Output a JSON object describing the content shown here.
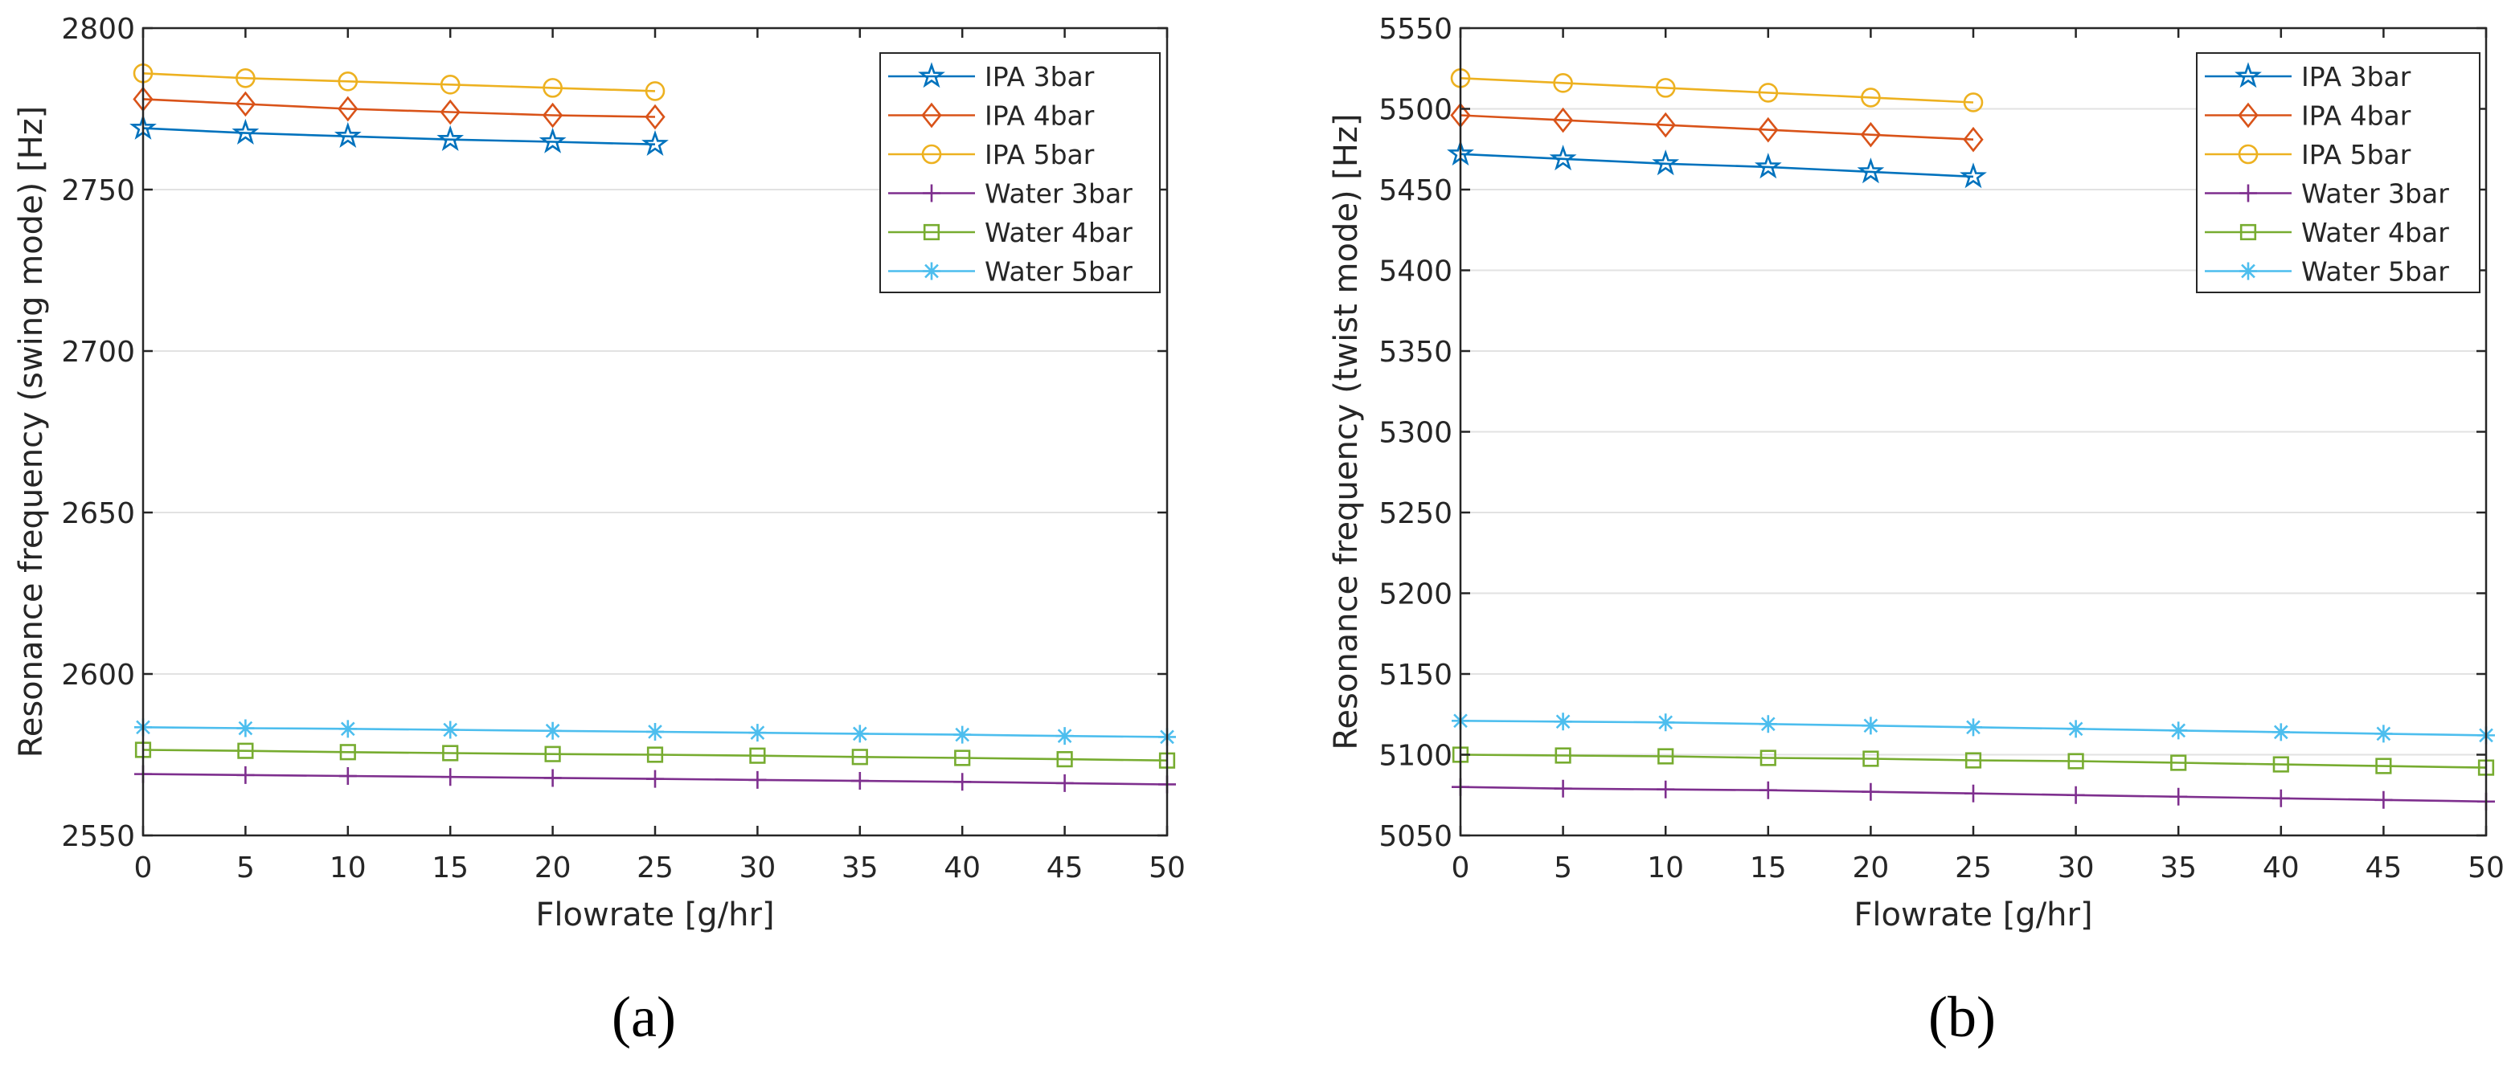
{
  "chart_data": [
    {
      "type": "line",
      "panel_label": "(a)",
      "title": "",
      "xlabel": "Flowrate [g/hr]",
      "ylabel": "Resonance frequency (swing mode) [Hz]",
      "xlim": [
        0,
        50
      ],
      "ylim": [
        2550,
        2800
      ],
      "xticks": [
        0,
        5,
        10,
        15,
        20,
        25,
        30,
        35,
        40,
        45,
        50
      ],
      "yticks": [
        2550,
        2600,
        2650,
        2700,
        2750,
        2800
      ],
      "grid": "horizontal",
      "legend_position": "top-right",
      "series": [
        {
          "name": "IPA 3bar",
          "color": "#0072BD",
          "marker": "star",
          "x": [
            0,
            5,
            10,
            15,
            20,
            25
          ],
          "values": [
            2769,
            2767.5,
            2766.5,
            2765.5,
            2764.8,
            2764
          ]
        },
        {
          "name": "IPA 4bar",
          "color": "#D95319",
          "marker": "diamond",
          "x": [
            0,
            5,
            10,
            15,
            20,
            25
          ],
          "values": [
            2778,
            2776.5,
            2775,
            2774,
            2773,
            2772.5
          ]
        },
        {
          "name": "IPA 5bar",
          "color": "#EDB120",
          "marker": "circle",
          "x": [
            0,
            5,
            10,
            15,
            20,
            25
          ],
          "values": [
            2786,
            2784.5,
            2783.5,
            2782.5,
            2781.5,
            2780.5
          ]
        },
        {
          "name": "Water 3bar",
          "color": "#7E2F8E",
          "marker": "plus",
          "x": [
            0,
            5,
            10,
            15,
            20,
            25,
            30,
            35,
            40,
            45,
            50
          ],
          "values": [
            2569,
            2568.7,
            2568.4,
            2568.1,
            2567.8,
            2567.5,
            2567.2,
            2566.9,
            2566.6,
            2566.2,
            2565.8
          ]
        },
        {
          "name": "Water 4bar",
          "color": "#77AC30",
          "marker": "square",
          "x": [
            0,
            5,
            10,
            15,
            20,
            25,
            30,
            35,
            40,
            45,
            50
          ],
          "values": [
            2576.5,
            2576.2,
            2575.8,
            2575.5,
            2575.2,
            2575,
            2574.7,
            2574.3,
            2574,
            2573.6,
            2573.2
          ]
        },
        {
          "name": "Water 5bar",
          "color": "#4DBEEE",
          "marker": "asterisk",
          "x": [
            0,
            5,
            10,
            15,
            20,
            25,
            30,
            35,
            40,
            45,
            50
          ],
          "values": [
            2583.5,
            2583.2,
            2583,
            2582.7,
            2582.4,
            2582.1,
            2581.8,
            2581.5,
            2581.2,
            2580.8,
            2580.5
          ]
        }
      ]
    },
    {
      "type": "line",
      "panel_label": "(b)",
      "title": "",
      "xlabel": "Flowrate [g/hr]",
      "ylabel": "Resonance frequency (twist mode) [Hz]",
      "xlim": [
        0,
        50
      ],
      "ylim": [
        5050,
        5550
      ],
      "xticks": [
        0,
        5,
        10,
        15,
        20,
        25,
        30,
        35,
        40,
        45,
        50
      ],
      "yticks": [
        5050,
        5100,
        5150,
        5200,
        5250,
        5300,
        5350,
        5400,
        5450,
        5500,
        5550
      ],
      "grid": "horizontal",
      "legend_position": "top-right",
      "series": [
        {
          "name": "IPA 3bar",
          "color": "#0072BD",
          "marker": "star",
          "x": [
            0,
            5,
            10,
            15,
            20,
            25
          ],
          "values": [
            5472,
            5469,
            5466,
            5464,
            5461,
            5458
          ]
        },
        {
          "name": "IPA 4bar",
          "color": "#D95319",
          "marker": "diamond",
          "x": [
            0,
            5,
            10,
            15,
            20,
            25
          ],
          "values": [
            5496,
            5493,
            5490,
            5487,
            5484,
            5481
          ]
        },
        {
          "name": "IPA 5bar",
          "color": "#EDB120",
          "marker": "circle",
          "x": [
            0,
            5,
            10,
            15,
            20,
            25
          ],
          "values": [
            5519,
            5516,
            5513,
            5510,
            5507,
            5504
          ]
        },
        {
          "name": "Water 3bar",
          "color": "#7E2F8E",
          "marker": "plus",
          "x": [
            0,
            5,
            10,
            15,
            20,
            25,
            30,
            35,
            40,
            45,
            50
          ],
          "values": [
            5080,
            5079,
            5078.5,
            5078,
            5077,
            5076,
            5075,
            5074,
            5073,
            5072,
            5071
          ]
        },
        {
          "name": "Water 4bar",
          "color": "#77AC30",
          "marker": "square",
          "x": [
            0,
            5,
            10,
            15,
            20,
            25,
            30,
            35,
            40,
            45,
            50
          ],
          "values": [
            5100,
            5099.5,
            5099,
            5098,
            5097.5,
            5096.5,
            5096,
            5095,
            5094,
            5093,
            5092
          ]
        },
        {
          "name": "Water 5bar",
          "color": "#4DBEEE",
          "marker": "asterisk",
          "x": [
            0,
            5,
            10,
            15,
            20,
            25,
            30,
            35,
            40,
            45,
            50
          ],
          "values": [
            5121,
            5120.5,
            5120,
            5119,
            5118,
            5117,
            5116,
            5115,
            5114,
            5113,
            5112
          ]
        }
      ]
    }
  ]
}
